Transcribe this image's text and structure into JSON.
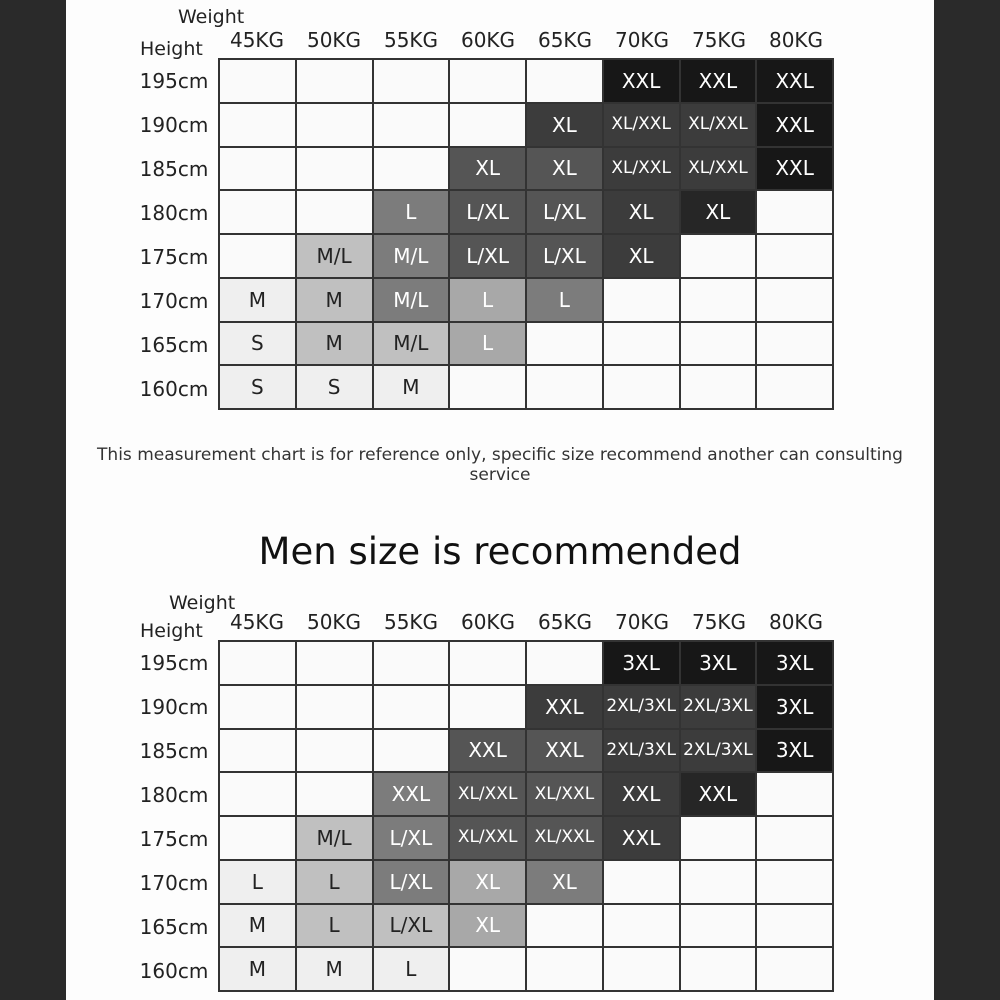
{
  "charts": [
    {
      "weight_label": "Weight",
      "height_label": "Height",
      "weights": [
        "45KG",
        "50KG",
        "55KG",
        "60KG",
        "65KG",
        "70KG",
        "75KG",
        "80KG"
      ],
      "heights": [
        "195cm",
        "190cm",
        "185cm",
        "180cm",
        "175cm",
        "170cm",
        "165cm",
        "160cm"
      ],
      "cells": [
        [
          "",
          "",
          "",
          "",
          "",
          "XXL",
          "XXL",
          "XXL"
        ],
        [
          "",
          "",
          "",
          "",
          "XL",
          "XL/XXL",
          "XL/XXL",
          "XXL"
        ],
        [
          "",
          "",
          "",
          "XL",
          "XL",
          "XL/XXL",
          "XL/XXL",
          "XXL"
        ],
        [
          "",
          "",
          "L",
          "L/XL",
          "L/XL",
          "XL",
          "XL",
          ""
        ],
        [
          "",
          "M/L",
          "M/L",
          "L/XL",
          "L/XL",
          "XL",
          "",
          ""
        ],
        [
          "M",
          "M",
          "M/L",
          "L",
          "L",
          "",
          "",
          ""
        ],
        [
          "S",
          "M",
          "M/L",
          "L",
          "",
          "",
          "",
          ""
        ],
        [
          "S",
          "S",
          "M",
          "",
          "",
          "",
          "",
          ""
        ]
      ],
      "shades": [
        [
          0,
          0,
          0,
          0,
          0,
          8,
          8,
          8
        ],
        [
          0,
          0,
          0,
          0,
          6,
          6,
          6,
          8
        ],
        [
          0,
          0,
          0,
          5,
          5,
          6,
          6,
          8
        ],
        [
          0,
          0,
          4,
          5,
          5,
          6,
          7,
          0
        ],
        [
          0,
          2,
          4,
          5,
          5,
          6,
          0,
          0
        ],
        [
          1,
          2,
          4,
          3,
          4,
          0,
          0,
          0
        ],
        [
          1,
          2,
          2,
          3,
          0,
          0,
          0,
          0
        ],
        [
          1,
          1,
          1,
          0,
          0,
          0,
          0,
          0
        ]
      ]
    },
    {
      "weight_label": "Weight",
      "height_label": "Height",
      "weights": [
        "45KG",
        "50KG",
        "55KG",
        "60KG",
        "65KG",
        "70KG",
        "75KG",
        "80KG"
      ],
      "heights": [
        "195cm",
        "190cm",
        "185cm",
        "180cm",
        "175cm",
        "170cm",
        "165cm",
        "160cm"
      ],
      "cells": [
        [
          "",
          "",
          "",
          "",
          "",
          "3XL",
          "3XL",
          "3XL"
        ],
        [
          "",
          "",
          "",
          "",
          "XXL",
          "2XL/3XL",
          "2XL/3XL",
          "3XL"
        ],
        [
          "",
          "",
          "",
          "XXL",
          "XXL",
          "2XL/3XL",
          "2XL/3XL",
          "3XL"
        ],
        [
          "",
          "",
          "XXL",
          "XL/XXL",
          "XL/XXL",
          "XXL",
          "XXL",
          ""
        ],
        [
          "",
          "M/L",
          "L/XL",
          "XL/XXL",
          "XL/XXL",
          "XXL",
          "",
          ""
        ],
        [
          "L",
          "L",
          "L/XL",
          "XL",
          "XL",
          "",
          "",
          ""
        ],
        [
          "M",
          "L",
          "L/XL",
          "XL",
          "",
          "",
          "",
          ""
        ],
        [
          "M",
          "M",
          "L",
          "",
          "",
          "",
          "",
          ""
        ]
      ],
      "shades": [
        [
          0,
          0,
          0,
          0,
          0,
          8,
          8,
          8
        ],
        [
          0,
          0,
          0,
          0,
          6,
          6,
          6,
          8
        ],
        [
          0,
          0,
          0,
          5,
          5,
          6,
          6,
          8
        ],
        [
          0,
          0,
          4,
          5,
          5,
          6,
          7,
          0
        ],
        [
          0,
          2,
          4,
          5,
          5,
          6,
          0,
          0
        ],
        [
          1,
          2,
          4,
          3,
          4,
          0,
          0,
          0
        ],
        [
          1,
          2,
          2,
          3,
          0,
          0,
          0,
          0
        ],
        [
          1,
          1,
          1,
          0,
          0,
          0,
          0,
          0
        ]
      ]
    }
  ],
  "note": "This measurement chart is for reference only, specific size recommend another can consulting service",
  "section_title": "Men size is recommended"
}
